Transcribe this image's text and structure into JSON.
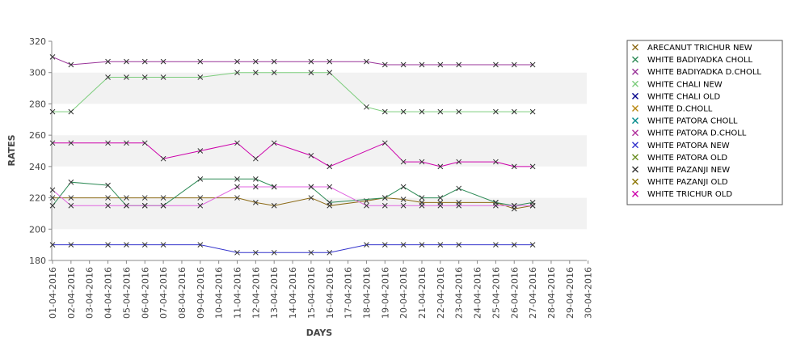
{
  "chart_data": {
    "type": "line",
    "xlabel": "DAYS",
    "ylabel": "RATES",
    "ylim": [
      180,
      320
    ],
    "yticks": [
      180,
      200,
      220,
      240,
      260,
      280,
      300,
      320
    ],
    "grid": "alternating horizontal bands",
    "legend_position": "right",
    "x": [
      "01-04-2016",
      "02-04-2016",
      "03-04-2016",
      "04-04-2016",
      "05-04-2016",
      "06-04-2016",
      "07-04-2016",
      "08-04-2016",
      "09-04-2016",
      "10-04-2016",
      "11-04-2016",
      "12-04-2016",
      "13-04-2016",
      "14-04-2016",
      "15-04-2016",
      "16-04-2016",
      "17-04-2016",
      "18-04-2016",
      "19-04-2016",
      "20-04-2016",
      "21-04-2016",
      "22-04-2016",
      "23-04-2016",
      "24-04-2016",
      "25-04-2016",
      "26-04-2016",
      "27-04-2016",
      "28-04-2016",
      "29-04-2016",
      "30-04-2016"
    ],
    "series": [
      {
        "name": "ARECANUT TRICHUR NEW",
        "color": "#8b6914",
        "points": [
          [
            "01-04-2016",
            220
          ],
          [
            "02-04-2016",
            220
          ],
          [
            "04-04-2016",
            220
          ],
          [
            "05-04-2016",
            220
          ],
          [
            "06-04-2016",
            220
          ],
          [
            "07-04-2016",
            220
          ],
          [
            "09-04-2016",
            220
          ],
          [
            "11-04-2016",
            220
          ],
          [
            "12-04-2016",
            217
          ],
          [
            "13-04-2016",
            215
          ],
          [
            "15-04-2016",
            220
          ],
          [
            "16-04-2016",
            215
          ],
          [
            "18-04-2016",
            218
          ],
          [
            "19-04-2016",
            220
          ],
          [
            "20-04-2016",
            219
          ],
          [
            "21-04-2016",
            217
          ],
          [
            "22-04-2016",
            217
          ],
          [
            "23-04-2016",
            217
          ],
          [
            "25-04-2016",
            217
          ],
          [
            "26-04-2016",
            213
          ],
          [
            "27-04-2016",
            215
          ]
        ]
      },
      {
        "name": "WHITE BADIYADKA CHOLL",
        "color": "#2e8b57",
        "points": [
          [
            "01-04-2016",
            215
          ],
          [
            "02-04-2016",
            230
          ],
          [
            "04-04-2016",
            228
          ],
          [
            "05-04-2016",
            215
          ],
          [
            "06-04-2016",
            215
          ],
          [
            "07-04-2016",
            215
          ],
          [
            "09-04-2016",
            232
          ],
          [
            "11-04-2016",
            232
          ],
          [
            "12-04-2016",
            232
          ],
          [
            "13-04-2016",
            227
          ],
          [
            "15-04-2016",
            227
          ],
          [
            "16-04-2016",
            217
          ],
          [
            "19-04-2016",
            220
          ],
          [
            "20-04-2016",
            227
          ],
          [
            "21-04-2016",
            220
          ],
          [
            "22-04-2016",
            220
          ],
          [
            "23-04-2016",
            226
          ],
          [
            "25-04-2016",
            217
          ],
          [
            "26-04-2016",
            215
          ],
          [
            "27-04-2016",
            217
          ]
        ]
      },
      {
        "name": "WHITE BADIYADKA D.CHOLL",
        "color": "#993399",
        "points": [
          [
            "01-04-2016",
            310
          ],
          [
            "02-04-2016",
            305
          ],
          [
            "04-04-2016",
            307
          ],
          [
            "05-04-2016",
            307
          ],
          [
            "06-04-2016",
            307
          ],
          [
            "07-04-2016",
            307
          ],
          [
            "09-04-2016",
            307
          ],
          [
            "11-04-2016",
            307
          ],
          [
            "12-04-2016",
            307
          ],
          [
            "13-04-2016",
            307
          ],
          [
            "15-04-2016",
            307
          ],
          [
            "16-04-2016",
            307
          ],
          [
            "18-04-2016",
            307
          ],
          [
            "19-04-2016",
            305
          ],
          [
            "20-04-2016",
            305
          ],
          [
            "21-04-2016",
            305
          ],
          [
            "22-04-2016",
            305
          ],
          [
            "23-04-2016",
            305
          ],
          [
            "25-04-2016",
            305
          ],
          [
            "26-04-2016",
            305
          ],
          [
            "27-04-2016",
            305
          ]
        ]
      },
      {
        "name": "WHITE CHALI NEW",
        "color": "#7ccd7c",
        "points": [
          [
            "01-04-2016",
            275
          ],
          [
            "02-04-2016",
            275
          ],
          [
            "04-04-2016",
            297
          ],
          [
            "05-04-2016",
            297
          ],
          [
            "06-04-2016",
            297
          ],
          [
            "07-04-2016",
            297
          ],
          [
            "09-04-2016",
            297
          ],
          [
            "11-04-2016",
            300
          ],
          [
            "12-04-2016",
            300
          ],
          [
            "13-04-2016",
            300
          ],
          [
            "15-04-2016",
            300
          ],
          [
            "16-04-2016",
            300
          ],
          [
            "18-04-2016",
            278
          ],
          [
            "19-04-2016",
            275
          ],
          [
            "20-04-2016",
            275
          ],
          [
            "21-04-2016",
            275
          ],
          [
            "22-04-2016",
            275
          ],
          [
            "23-04-2016",
            275
          ],
          [
            "25-04-2016",
            275
          ],
          [
            "26-04-2016",
            275
          ],
          [
            "27-04-2016",
            275
          ]
        ]
      },
      {
        "name": "WHITE CHALI OLD",
        "color": "#00008b",
        "points": []
      },
      {
        "name": "WHITE D.CHOLL",
        "color": "#b8860b",
        "points": []
      },
      {
        "name": "WHITE PATORA CHOLL",
        "color": "#008b8b",
        "points": []
      },
      {
        "name": "WHITE PATORA D.CHOLL",
        "color": "#b0309c",
        "points": []
      },
      {
        "name": "WHITE PATORA NEW",
        "color": "#3333cc",
        "points": [
          [
            "01-04-2016",
            190
          ],
          [
            "02-04-2016",
            190
          ],
          [
            "04-04-2016",
            190
          ],
          [
            "05-04-2016",
            190
          ],
          [
            "06-04-2016",
            190
          ],
          [
            "07-04-2016",
            190
          ],
          [
            "09-04-2016",
            190
          ],
          [
            "11-04-2016",
            185
          ],
          [
            "12-04-2016",
            185
          ],
          [
            "13-04-2016",
            185
          ],
          [
            "15-04-2016",
            185
          ],
          [
            "16-04-2016",
            185
          ],
          [
            "18-04-2016",
            190
          ],
          [
            "19-04-2016",
            190
          ],
          [
            "20-04-2016",
            190
          ],
          [
            "21-04-2016",
            190
          ],
          [
            "22-04-2016",
            190
          ],
          [
            "23-04-2016",
            190
          ],
          [
            "25-04-2016",
            190
          ],
          [
            "26-04-2016",
            190
          ],
          [
            "27-04-2016",
            190
          ]
        ]
      },
      {
        "name": "WHITE PATORA OLD",
        "color": "#6b8e23",
        "points": []
      },
      {
        "name": "WHITE PAZANJI NEW",
        "color": "#333333",
        "points": []
      },
      {
        "name": "WHITE PAZANJI OLD",
        "color": "#8b7500",
        "points": []
      },
      {
        "name": "WHITE TRICHUR OLD",
        "color": "#cc00aa",
        "points": [
          [
            "01-04-2016",
            255
          ],
          [
            "02-04-2016",
            255
          ],
          [
            "04-04-2016",
            255
          ],
          [
            "05-04-2016",
            255
          ],
          [
            "06-04-2016",
            255
          ],
          [
            "07-04-2016",
            245
          ],
          [
            "09-04-2016",
            250
          ],
          [
            "11-04-2016",
            255
          ],
          [
            "12-04-2016",
            245
          ],
          [
            "13-04-2016",
            255
          ],
          [
            "15-04-2016",
            247
          ],
          [
            "16-04-2016",
            240
          ],
          [
            "19-04-2016",
            255
          ],
          [
            "20-04-2016",
            243
          ],
          [
            "21-04-2016",
            243
          ],
          [
            "22-04-2016",
            240
          ],
          [
            "23-04-2016",
            243
          ],
          [
            "25-04-2016",
            243
          ],
          [
            "26-04-2016",
            240
          ],
          [
            "27-04-2016",
            240
          ]
        ]
      },
      {
        "name": "",
        "color": "#e066e0",
        "points": [
          [
            "01-04-2016",
            225
          ],
          [
            "02-04-2016",
            215
          ],
          [
            "04-04-2016",
            215
          ],
          [
            "05-04-2016",
            215
          ],
          [
            "06-04-2016",
            215
          ],
          [
            "07-04-2016",
            215
          ],
          [
            "09-04-2016",
            215
          ],
          [
            "11-04-2016",
            227
          ],
          [
            "12-04-2016",
            227
          ],
          [
            "13-04-2016",
            227
          ],
          [
            "15-04-2016",
            227
          ],
          [
            "16-04-2016",
            227
          ],
          [
            "18-04-2016",
            215
          ],
          [
            "19-04-2016",
            215
          ],
          [
            "20-04-2016",
            215
          ],
          [
            "21-04-2016",
            215
          ],
          [
            "22-04-2016",
            215
          ],
          [
            "23-04-2016",
            215
          ],
          [
            "25-04-2016",
            215
          ],
          [
            "26-04-2016",
            215
          ],
          [
            "27-04-2016",
            215
          ]
        ]
      }
    ]
  }
}
